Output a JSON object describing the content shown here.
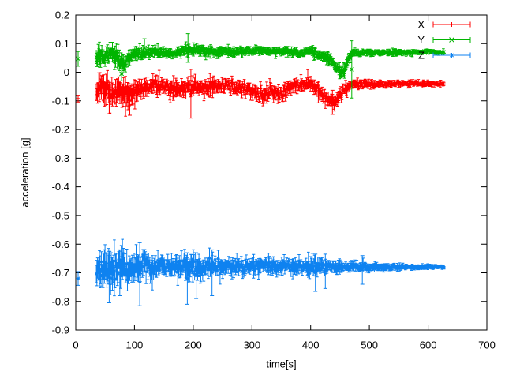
{
  "chart_data": {
    "type": "scatter",
    "style": "errorbars",
    "title": "",
    "xlabel": "time[s]",
    "ylabel": "acceleration [g]",
    "xlim": [
      0,
      700
    ],
    "ylim": [
      -0.9,
      0.2
    ],
    "xticks": [
      0,
      100,
      200,
      300,
      400,
      500,
      600,
      700
    ],
    "xtick_labels": [
      "0",
      "100",
      "200",
      "300",
      "400",
      "500",
      "600",
      "700"
    ],
    "yticks": [
      0.2,
      0.1,
      0,
      -0.1,
      -0.2,
      -0.3,
      -0.4,
      -0.5,
      -0.6,
      -0.7,
      -0.8,
      -0.9
    ],
    "ytick_labels": [
      "0.2",
      "0.1",
      "0",
      "-0.1",
      "-0.2",
      "-0.3",
      "-0.4",
      "-0.5",
      "-0.6",
      "-0.7",
      "-0.8",
      "-0.9"
    ],
    "grid": false,
    "background": "#ffffff",
    "axis_color": "#000000",
    "legend_position": "top-right-inside",
    "data_time_range": [
      35,
      627
    ],
    "series": [
      {
        "name": "X",
        "color": "#ff0000",
        "marker": "plus",
        "isolated_points_t_y_err": [
          [
            4,
            -0.092,
            0.012
          ]
        ],
        "band_envelope_t_mean_halfspread": [
          [
            35,
            -0.07,
            0.055
          ],
          [
            45,
            -0.06,
            0.06
          ],
          [
            52,
            -0.055,
            0.07
          ],
          [
            60,
            -0.068,
            0.055
          ],
          [
            72,
            -0.06,
            0.05
          ],
          [
            85,
            -0.075,
            0.055
          ],
          [
            95,
            -0.07,
            0.05
          ],
          [
            110,
            -0.058,
            0.04
          ],
          [
            130,
            -0.052,
            0.032
          ],
          [
            150,
            -0.052,
            0.035
          ],
          [
            168,
            -0.06,
            0.04
          ],
          [
            185,
            -0.055,
            0.035
          ],
          [
            200,
            -0.05,
            0.035
          ],
          [
            220,
            -0.052,
            0.035
          ],
          [
            240,
            -0.048,
            0.03
          ],
          [
            258,
            -0.044,
            0.028
          ],
          [
            272,
            -0.058,
            0.03
          ],
          [
            290,
            -0.055,
            0.03
          ],
          [
            305,
            -0.068,
            0.033
          ],
          [
            318,
            -0.085,
            0.033
          ],
          [
            332,
            -0.062,
            0.03
          ],
          [
            342,
            -0.08,
            0.033
          ],
          [
            352,
            -0.075,
            0.033
          ],
          [
            368,
            -0.045,
            0.028
          ],
          [
            380,
            -0.05,
            0.028
          ],
          [
            395,
            -0.032,
            0.026
          ],
          [
            408,
            -0.055,
            0.03
          ],
          [
            418,
            -0.075,
            0.033
          ],
          [
            432,
            -0.095,
            0.03
          ],
          [
            444,
            -0.098,
            0.028
          ],
          [
            456,
            -0.06,
            0.028
          ],
          [
            468,
            -0.045,
            0.022
          ],
          [
            485,
            -0.04,
            0.018
          ],
          [
            510,
            -0.042,
            0.015
          ],
          [
            545,
            -0.04,
            0.013
          ],
          [
            585,
            -0.04,
            0.012
          ],
          [
            627,
            -0.04,
            0.012
          ]
        ],
        "outlier_errorbars_t_center_err": [
          [
            57,
            -0.09,
            0.055
          ],
          [
            92,
            -0.1,
            0.05
          ],
          [
            196,
            -0.075,
            0.085
          ],
          [
            437,
            -0.105,
            0.042
          ]
        ]
      },
      {
        "name": "Y",
        "color": "#00b400",
        "marker": "cross",
        "isolated_points_t_y_err": [
          [
            4,
            0.047,
            0.026
          ]
        ],
        "band_envelope_t_mean_halfspread": [
          [
            35,
            0.05,
            0.05
          ],
          [
            45,
            0.06,
            0.042
          ],
          [
            60,
            0.065,
            0.035
          ],
          [
            75,
            0.045,
            0.048
          ],
          [
            82,
            0.035,
            0.045
          ],
          [
            90,
            0.06,
            0.032
          ],
          [
            105,
            0.065,
            0.027
          ],
          [
            125,
            0.068,
            0.022
          ],
          [
            150,
            0.07,
            0.02
          ],
          [
            170,
            0.067,
            0.018
          ],
          [
            185,
            0.08,
            0.02
          ],
          [
            205,
            0.078,
            0.02
          ],
          [
            220,
            0.07,
            0.02
          ],
          [
            245,
            0.072,
            0.018
          ],
          [
            270,
            0.07,
            0.017
          ],
          [
            295,
            0.074,
            0.018
          ],
          [
            312,
            0.079,
            0.017
          ],
          [
            330,
            0.071,
            0.016
          ],
          [
            355,
            0.074,
            0.017
          ],
          [
            380,
            0.067,
            0.016
          ],
          [
            397,
            0.075,
            0.017
          ],
          [
            412,
            0.064,
            0.018
          ],
          [
            428,
            0.05,
            0.022
          ],
          [
            442,
            0.025,
            0.022
          ],
          [
            452,
            -0.002,
            0.025
          ],
          [
            458,
            0.008,
            0.022
          ],
          [
            465,
            0.05,
            0.022
          ],
          [
            472,
            0.068,
            0.016
          ],
          [
            490,
            0.068,
            0.013
          ],
          [
            515,
            0.07,
            0.012
          ],
          [
            545,
            0.069,
            0.011
          ],
          [
            580,
            0.07,
            0.01
          ],
          [
            610,
            0.071,
            0.009
          ],
          [
            627,
            0.07,
            0.009
          ]
        ],
        "outlier_errorbars_t_center_err": [
          [
            78,
            -0.005,
            0.025
          ],
          [
            117,
            0.085,
            0.032
          ],
          [
            191,
            0.085,
            0.05
          ],
          [
            470,
            0.01,
            0.1
          ]
        ]
      },
      {
        "name": "Z",
        "color": "#0e82f0",
        "marker": "star",
        "isolated_points_t_y_err": [
          [
            4,
            -0.72,
            0.024
          ]
        ],
        "band_envelope_t_mean_halfspread": [
          [
            35,
            -0.69,
            0.065
          ],
          [
            45,
            -0.69,
            0.075
          ],
          [
            55,
            -0.685,
            0.08
          ],
          [
            70,
            -0.69,
            0.075
          ],
          [
            85,
            -0.685,
            0.07
          ],
          [
            100,
            -0.683,
            0.062
          ],
          [
            115,
            -0.68,
            0.058
          ],
          [
            130,
            -0.679,
            0.05
          ],
          [
            145,
            -0.676,
            0.042
          ],
          [
            158,
            -0.675,
            0.034
          ],
          [
            172,
            -0.676,
            0.04
          ],
          [
            188,
            -0.679,
            0.055
          ],
          [
            202,
            -0.678,
            0.052
          ],
          [
            218,
            -0.676,
            0.048
          ],
          [
            235,
            -0.677,
            0.044
          ],
          [
            252,
            -0.676,
            0.04
          ],
          [
            270,
            -0.677,
            0.04
          ],
          [
            290,
            -0.677,
            0.036
          ],
          [
            310,
            -0.676,
            0.035
          ],
          [
            330,
            -0.675,
            0.032
          ],
          [
            350,
            -0.676,
            0.031
          ],
          [
            370,
            -0.677,
            0.031
          ],
          [
            390,
            -0.678,
            0.033
          ],
          [
            405,
            -0.678,
            0.036
          ],
          [
            420,
            -0.678,
            0.031
          ],
          [
            440,
            -0.678,
            0.027
          ],
          [
            460,
            -0.679,
            0.023
          ],
          [
            480,
            -0.679,
            0.02
          ],
          [
            500,
            -0.68,
            0.018
          ],
          [
            525,
            -0.68,
            0.015
          ],
          [
            550,
            -0.68,
            0.013
          ],
          [
            575,
            -0.68,
            0.011
          ],
          [
            600,
            -0.68,
            0.009
          ],
          [
            627,
            -0.68,
            0.008
          ]
        ],
        "outlier_errorbars_t_center_err": [
          [
            57,
            -0.715,
            0.09
          ],
          [
            75,
            -0.7,
            0.08
          ],
          [
            109,
            -0.705,
            0.11
          ],
          [
            190,
            -0.72,
            0.09
          ],
          [
            205,
            -0.71,
            0.08
          ],
          [
            232,
            -0.7,
            0.08
          ],
          [
            408,
            -0.7,
            0.065
          ],
          [
            425,
            -0.695,
            0.06
          ],
          [
            488,
            -0.69,
            0.05
          ]
        ]
      }
    ]
  }
}
